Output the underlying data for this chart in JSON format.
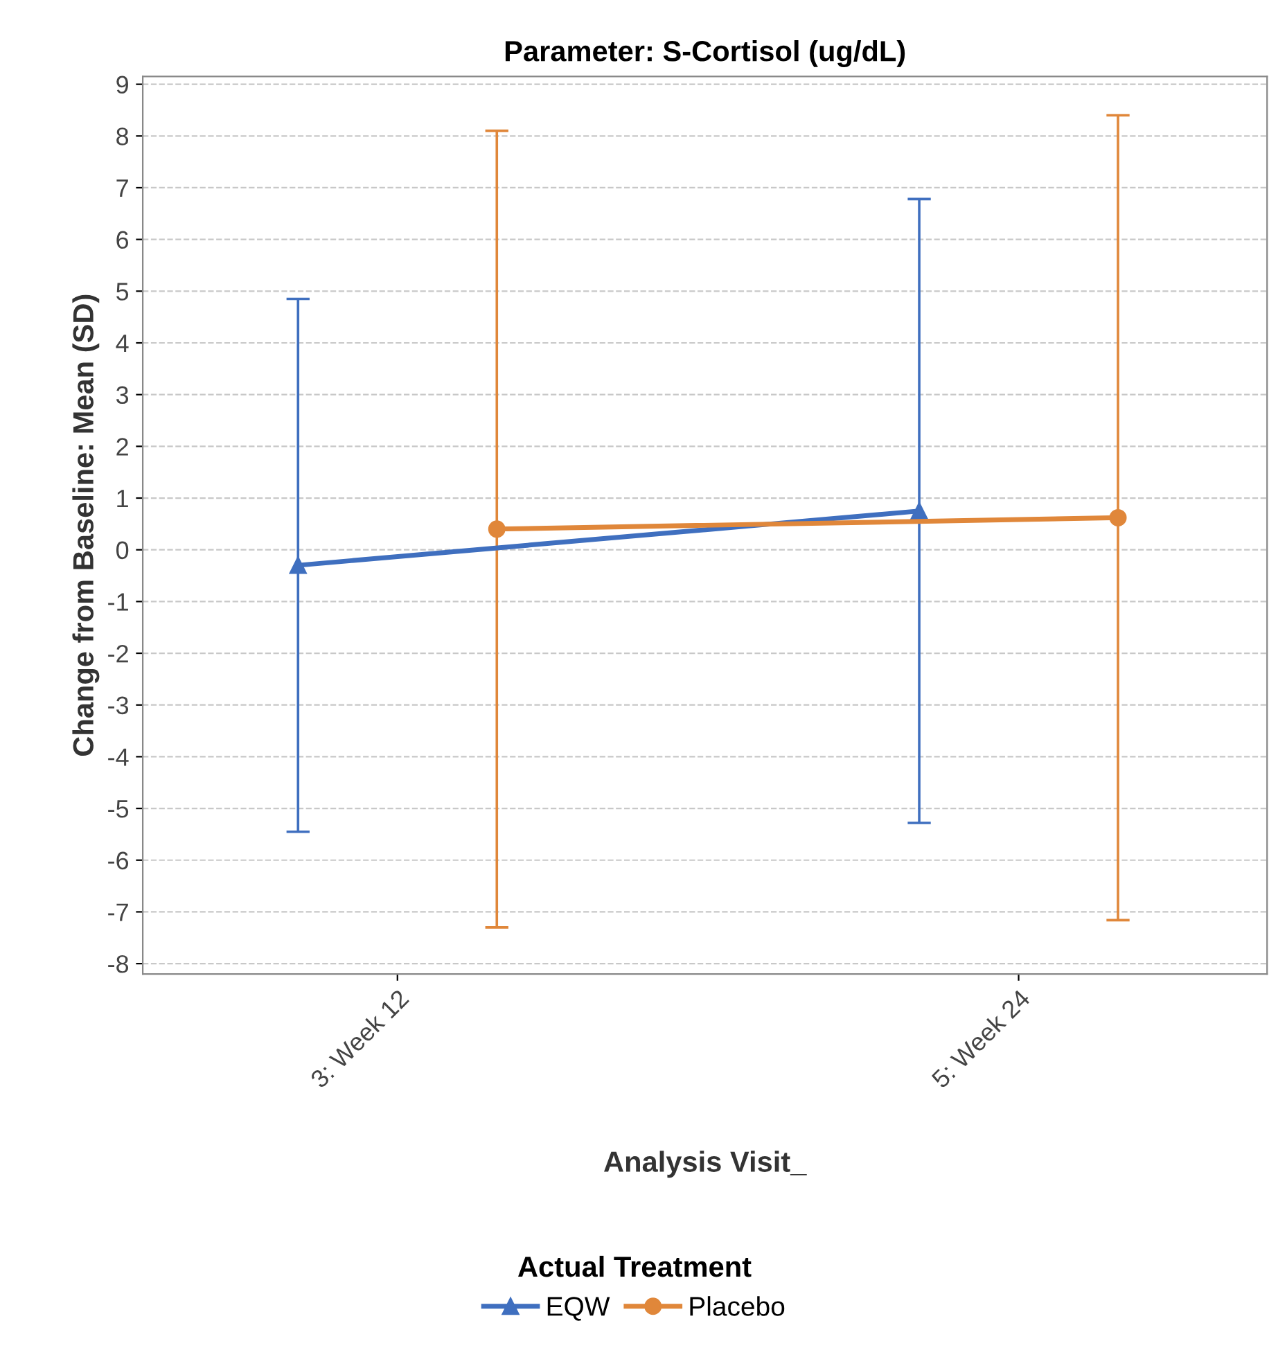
{
  "chart_data": {
    "type": "line",
    "title": "Parameter: S-Cortisol (ug/dL)",
    "xlabel": "Analysis Visit_",
    "ylabel": "Change from Baseline: Mean (SD)",
    "legend_title": "Actual Treatment",
    "categories": [
      "3: Week 12",
      "5: Week 24"
    ],
    "series": [
      {
        "name": "EQW",
        "color": "#3f6fbf",
        "marker": "triangle",
        "values": [
          -0.3,
          0.75
        ],
        "errors": [
          5.15,
          6.03
        ]
      },
      {
        "name": "Placebo",
        "color": "#e0873a",
        "marker": "circle",
        "values": [
          0.4,
          0.62
        ],
        "errors": [
          7.7,
          7.78
        ]
      }
    ],
    "ylim": [
      -8.2,
      9.15
    ],
    "yticks": [
      -8,
      -7,
      -6,
      -5,
      -4,
      -3,
      -2,
      -1,
      0,
      1,
      2,
      3,
      4,
      5,
      6,
      7,
      8,
      9
    ],
    "grid": "y",
    "legend": "bottom"
  }
}
